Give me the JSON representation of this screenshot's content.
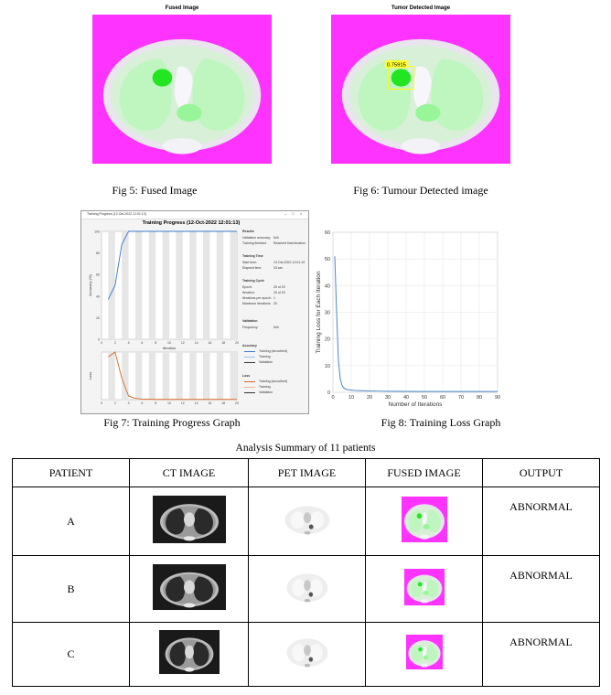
{
  "figures": {
    "fig5": {
      "title": "Fused Image",
      "caption": "Fig 5: Fused Image"
    },
    "fig6": {
      "title": "Tumor Detected Image",
      "caption": "Fig 6: Tumour Detected image",
      "score_label": "0.75915"
    },
    "fig7": {
      "caption": "Fig 7: Training Progress Graph",
      "window_title": "Training Progress (12-Oct-2022 12:01:13)",
      "plot_title": "Training Progress (12-Oct-2022 12:01:13)",
      "accuracy_ylabel": "Accuracy (%)",
      "loss_ylabel": "Loss",
      "xlabel": "Iteration",
      "info": {
        "results_h": "Results",
        "val_acc": "Validation accuracy:",
        "val_acc_v": "N/A",
        "train_fin": "Training finished:",
        "train_fin_v": "Reached final iteration",
        "time_h": "Training Time",
        "start": "Start time:",
        "start_v": "12-Oct-2022 12:01:13",
        "elapsed": "Elapsed time:",
        "elapsed_v": "33 sec",
        "cycle_h": "Training Cycle",
        "epoch": "Epoch:",
        "epoch_v": "20 of 20",
        "iter": "Iteration:",
        "iter_v": "20 of 20",
        "ipe": "Iterations per epoch:",
        "ipe_v": "1",
        "maxit": "Maximum iterations:",
        "maxit_v": "20",
        "val_h": "Validation",
        "freq": "Frequency:",
        "freq_v": "N/A",
        "acc_leg_h": "Accuracy",
        "loss_leg_h": "Loss",
        "leg_smooth": "Training (smoothed)",
        "leg_train": "Training",
        "leg_val": "Validation"
      }
    },
    "fig8": {
      "caption": "Fig 8: Training Loss Graph"
    }
  },
  "chart_data": [
    {
      "type": "line",
      "title": "",
      "xlabel": "Number of Iterations",
      "ylabel": "Training Loss for Each Iteration",
      "xlim": [
        0,
        90
      ],
      "ylim": [
        0,
        60
      ],
      "xticks": [
        0,
        10,
        20,
        30,
        40,
        50,
        60,
        70,
        80,
        90
      ],
      "yticks": [
        0,
        10,
        20,
        30,
        40,
        50,
        60
      ],
      "grid": true,
      "x": [
        1,
        2,
        3,
        4,
        5,
        6,
        7,
        8,
        10,
        12,
        15,
        20,
        25,
        30,
        40,
        50,
        60,
        70,
        80,
        90
      ],
      "y": [
        51,
        30,
        12,
        5,
        2.5,
        1.6,
        1.2,
        1.0,
        0.8,
        0.7,
        0.6,
        0.5,
        0.45,
        0.4,
        0.35,
        0.3,
        0.3,
        0.3,
        0.3,
        0.3
      ]
    },
    {
      "type": "line",
      "title": "Training Progress (12-Oct-2022 12:01:13)",
      "ylabel": "Accuracy (%)",
      "xlabel": "Iteration",
      "xlim": [
        0,
        20
      ],
      "ylim": [
        0,
        100
      ],
      "xticks": [
        0,
        2,
        4,
        6,
        8,
        10,
        12,
        14,
        16,
        18,
        20
      ],
      "yticks": [
        0,
        20,
        40,
        60,
        80,
        100
      ],
      "x": [
        1,
        2,
        3,
        4,
        5,
        6,
        8,
        10,
        12,
        14,
        16,
        18,
        20
      ],
      "y": [
        37,
        50,
        88,
        100,
        100,
        100,
        100,
        100,
        100,
        100,
        100,
        100,
        100
      ]
    },
    {
      "type": "line",
      "title": "",
      "ylabel": "Loss",
      "xlabel": "",
      "xlim": [
        0,
        20
      ],
      "ylim": [
        0,
        2
      ],
      "xticks": [
        0,
        2,
        4,
        6,
        8,
        10,
        12,
        14,
        16,
        18,
        20
      ],
      "x": [
        1,
        2,
        3,
        4,
        5,
        6,
        8,
        10,
        12,
        14,
        16,
        18,
        20
      ],
      "y": [
        1.8,
        2.0,
        0.9,
        0.15,
        0.05,
        0.02,
        0.01,
        0.01,
        0.01,
        0.01,
        0.01,
        0.01,
        0.01
      ]
    }
  ],
  "table": {
    "title": "Analysis Summary of 11 patients",
    "headers": [
      "PATIENT",
      "CT IMAGE",
      "PET IMAGE",
      "FUSED IMAGE",
      "OUTPUT"
    ],
    "rows": [
      {
        "patient": "A",
        "output": "ABNORMAL"
      },
      {
        "patient": "B",
        "output": "ABNORMAL"
      },
      {
        "patient": "C",
        "output": "ABNORMAL"
      }
    ]
  }
}
